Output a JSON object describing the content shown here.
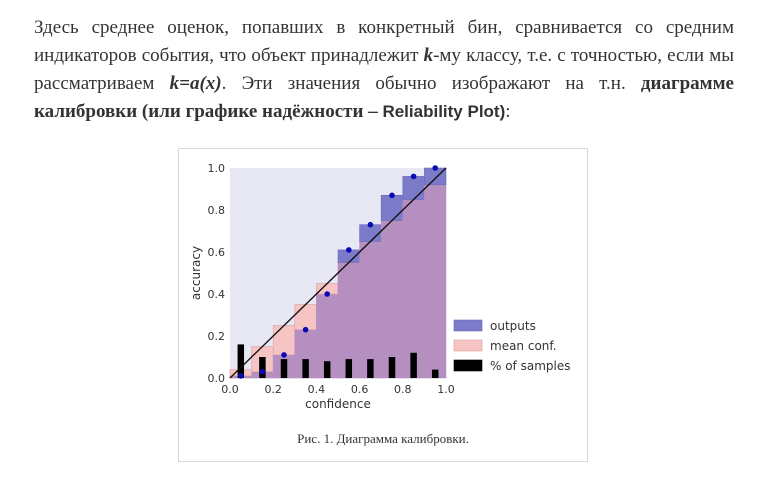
{
  "paragraph": {
    "t1": "Здесь среднее оценок, попавших в конкретный бин, сравнивается со средним индикаторов события, что объект принадлежит ",
    "k1": "k",
    "t2": "-му классу, т.е. с точностью, если мы рассматриваем ",
    "formula": "k=a(x)",
    "t3": ". Эти значения обычно изображают на т.н. ",
    "bold1": "диаграмме калибровки (или графике надёжности – ",
    "bold2": "Reliability Plot)",
    "t4": ":"
  },
  "figure": {
    "caption": "Рис. 1. Диаграмма калибровки."
  },
  "chart_data": {
    "type": "bar",
    "xlabel": "confidence",
    "ylabel": "accuracy",
    "xlim": [
      0.0,
      1.0
    ],
    "ylim": [
      0.0,
      1.0
    ],
    "xticks": [
      "0.0",
      "0.2",
      "0.4",
      "0.6",
      "0.8",
      "1.0"
    ],
    "yticks": [
      "0.0",
      "0.2",
      "0.4",
      "0.6",
      "0.8",
      "1.0"
    ],
    "bin_width": 0.1,
    "bin_centers": [
      0.05,
      0.15,
      0.25,
      0.35,
      0.45,
      0.55,
      0.65,
      0.75,
      0.85,
      0.95
    ],
    "series": [
      {
        "name": "outputs",
        "values": [
          0.01,
          0.03,
          0.11,
          0.23,
          0.4,
          0.61,
          0.73,
          0.87,
          0.96,
          1.0
        ]
      },
      {
        "name": "mean conf.",
        "values": [
          0.04,
          0.15,
          0.25,
          0.35,
          0.45,
          0.55,
          0.65,
          0.75,
          0.85,
          0.92
        ]
      },
      {
        "name": "% of samples",
        "values": [
          0.16,
          0.1,
          0.09,
          0.09,
          0.08,
          0.09,
          0.09,
          0.1,
          0.12,
          0.04
        ]
      }
    ],
    "legend_position": "lower-right",
    "colors": {
      "outputs": "#7b7bc9",
      "mean_conf": "#f7c4c4",
      "overlap": "#b58fbf",
      "samples": "#000000",
      "points": "#0a0ab4",
      "background": "#e8e8f4"
    }
  }
}
